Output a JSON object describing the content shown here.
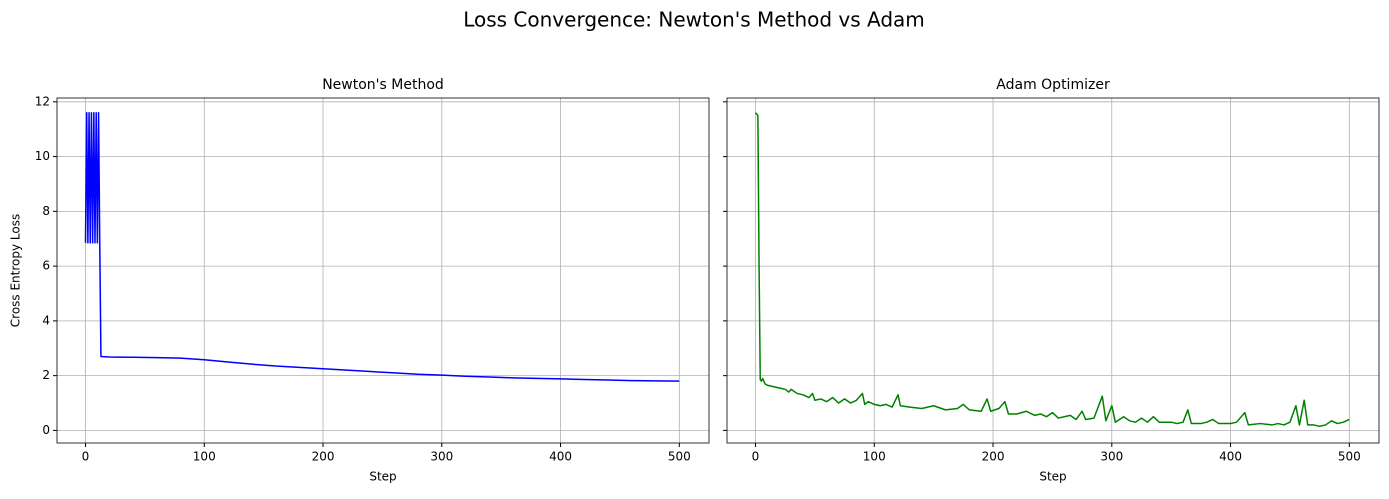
{
  "title": "Loss Convergence: Newton's Method vs Adam",
  "chart_data": [
    {
      "type": "line",
      "title": "Newton's Method",
      "xlabel": "Step",
      "ylabel": "Cross Entropy Loss",
      "color": "#0000ff",
      "grid": true,
      "xlim": [
        -24,
        525
      ],
      "ylim": [
        -0.46,
        12.14
      ],
      "xticks": [
        0,
        100,
        200,
        300,
        400,
        500
      ],
      "yticks": [
        0,
        2,
        4,
        6,
        8,
        10,
        12
      ],
      "ytick_labels": true,
      "x": [
        0,
        1,
        2,
        3,
        4,
        5,
        6,
        7,
        8,
        9,
        10,
        11,
        12,
        13,
        20,
        40,
        60,
        80,
        100,
        120,
        140,
        160,
        180,
        200,
        220,
        240,
        260,
        280,
        300,
        320,
        340,
        360,
        380,
        400,
        420,
        440,
        460,
        480,
        500
      ],
      "values": [
        6.85,
        11.6,
        6.85,
        11.6,
        6.85,
        11.6,
        6.85,
        11.6,
        6.85,
        11.6,
        6.85,
        11.6,
        6.85,
        2.7,
        2.68,
        2.67,
        2.66,
        2.64,
        2.58,
        2.5,
        2.42,
        2.35,
        2.3,
        2.25,
        2.2,
        2.15,
        2.1,
        2.05,
        2.02,
        1.98,
        1.95,
        1.92,
        1.9,
        1.88,
        1.86,
        1.84,
        1.82,
        1.81,
        1.8
      ]
    },
    {
      "type": "line",
      "title": "Adam Optimizer",
      "xlabel": "Step",
      "color": "#008000",
      "grid": true,
      "xlim": [
        -24,
        525
      ],
      "ylim": [
        -0.46,
        12.14
      ],
      "xticks": [
        0,
        100,
        200,
        300,
        400,
        500
      ],
      "yticks": [
        0,
        2,
        4,
        6,
        8,
        10,
        12
      ],
      "ytick_labels": false,
      "x": [
        0,
        2,
        3,
        4,
        5,
        6,
        8,
        10,
        15,
        20,
        25,
        28,
        30,
        35,
        40,
        45,
        48,
        50,
        55,
        60,
        65,
        70,
        75,
        80,
        85,
        90,
        92,
        95,
        100,
        105,
        110,
        115,
        120,
        122,
        130,
        140,
        150,
        160,
        170,
        175,
        180,
        190,
        195,
        198,
        205,
        210,
        213,
        220,
        228,
        235,
        240,
        245,
        250,
        255,
        260,
        265,
        270,
        275,
        278,
        285,
        292,
        295,
        300,
        303,
        310,
        315,
        320,
        325,
        330,
        335,
        340,
        350,
        355,
        360,
        364,
        367,
        375,
        380,
        385,
        390,
        400,
        405,
        412,
        415,
        425,
        435,
        440,
        445,
        450,
        455,
        458,
        462,
        465,
        470,
        475,
        480,
        485,
        490,
        495,
        500
      ],
      "values": [
        11.6,
        11.5,
        6,
        1.85,
        1.8,
        1.9,
        1.7,
        1.65,
        1.6,
        1.55,
        1.5,
        1.4,
        1.5,
        1.35,
        1.3,
        1.2,
        1.35,
        1.1,
        1.15,
        1.05,
        1.2,
        1.0,
        1.15,
        1.0,
        1.1,
        1.35,
        0.95,
        1.05,
        0.95,
        0.9,
        0.95,
        0.85,
        1.3,
        0.9,
        0.85,
        0.8,
        0.9,
        0.75,
        0.8,
        0.95,
        0.75,
        0.7,
        1.15,
        0.7,
        0.8,
        1.05,
        0.6,
        0.6,
        0.7,
        0.55,
        0.6,
        0.5,
        0.65,
        0.45,
        0.5,
        0.55,
        0.4,
        0.7,
        0.4,
        0.45,
        1.25,
        0.35,
        0.9,
        0.3,
        0.5,
        0.35,
        0.3,
        0.45,
        0.3,
        0.5,
        0.3,
        0.3,
        0.25,
        0.3,
        0.75,
        0.25,
        0.25,
        0.3,
        0.4,
        0.25,
        0.25,
        0.3,
        0.65,
        0.2,
        0.25,
        0.2,
        0.25,
        0.2,
        0.3,
        0.9,
        0.2,
        1.1,
        0.2,
        0.2,
        0.15,
        0.2,
        0.35,
        0.25,
        0.3,
        0.4
      ]
    }
  ]
}
